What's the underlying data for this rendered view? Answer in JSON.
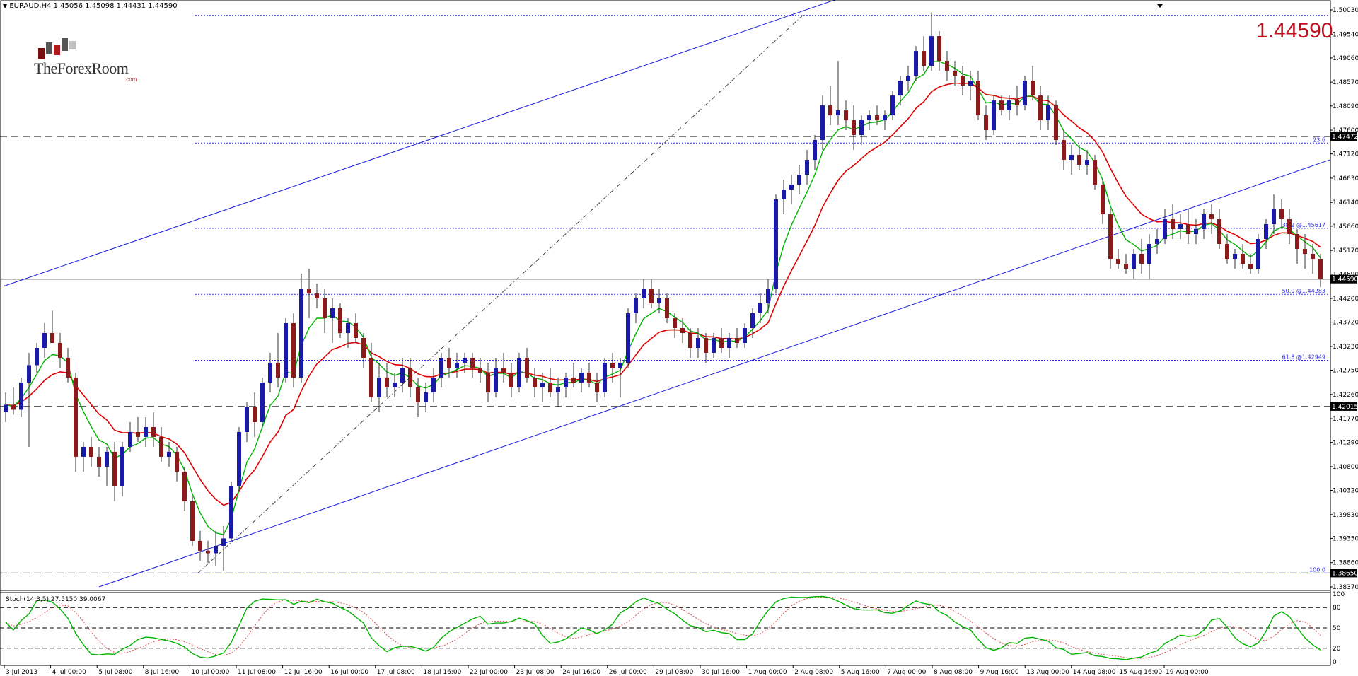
{
  "header": {
    "symbol_line": "EURAUD,H4  1.45056 1.45098 1.44431 1.44590"
  },
  "big_price": "1.44590",
  "logo": {
    "text_the": "The",
    "text_forex": "Forex",
    "text_room": "Room",
    "text_com": ".com"
  },
  "stoch": {
    "label": "Stoch(14,3,5) 27.5150 39.0067",
    "levels": [
      100,
      80,
      50,
      20,
      0
    ],
    "level_labels": [
      "100",
      "80",
      "50",
      "20",
      "0"
    ]
  },
  "colors": {
    "bull": "#1a1aa8",
    "bear": "#8b1a1a",
    "ma_fast": "#00b400",
    "ma_slow": "#e00000",
    "channel": "#1a1ae0",
    "fib": "#2a2ae0",
    "big_price": "#c01020"
  },
  "chart_data": {
    "type": "candlestick",
    "symbol": "EURAUD",
    "timeframe": "H4",
    "ylim": [
      1.3837,
      1.5003
    ],
    "y_ticks": [
      1.5003,
      1.4954,
      1.4906,
      1.4857,
      1.4809,
      1.476,
      1.4712,
      1.4663,
      1.4614,
      1.4566,
      1.4517,
      1.4469,
      1.442,
      1.4372,
      1.4323,
      1.4275,
      1.4226,
      1.4177,
      1.4129,
      1.408,
      1.4032,
      1.3983,
      1.3935,
      1.3886,
      1.3837
    ],
    "y_tick_labels": [
      "1.50030",
      "1.49540",
      "1.49060",
      "1.48570",
      "1.48090",
      "1.47600",
      "1.47120",
      "1.46630",
      "1.46140",
      "1.45660",
      "1.45170",
      "1.44690",
      "1.44200",
      "1.43720",
      "1.43230",
      "1.42750",
      "1.42260",
      "1.41770",
      "1.41290",
      "1.40800",
      "1.40320",
      "1.39830",
      "1.39350",
      "1.38860",
      "1.38370"
    ],
    "x_tick_labels": [
      "3 Jul 2013",
      "4 Jul 00:00",
      "5 Jul 08:00",
      "8 Jul 16:00",
      "10 Jul 00:00",
      "11 Jul 08:00",
      "12 Jul 16:00",
      "16 Jul 00:00",
      "17 Jul 08:00",
      "18 Jul 16:00",
      "22 Jul 00:00",
      "23 Jul 08:00",
      "24 Jul 16:00",
      "26 Jul 00:00",
      "29 Jul 08:00",
      "30 Jul 16:00",
      "1 Aug 00:00",
      "2 Aug 08:00",
      "5 Aug 16:00",
      "7 Aug 00:00",
      "8 Aug 08:00",
      "9 Aug 16:00",
      "13 Aug 00:00",
      "14 Aug 08:00",
      "15 Aug 16:00",
      "19 Aug 00:00"
    ],
    "horizontal_levels": [
      {
        "label": "1.47472",
        "value": 1.47472,
        "style": "dashed-black"
      },
      {
        "label": "1.44590",
        "value": 1.4459,
        "style": "solid-black"
      },
      {
        "label": "1.42015",
        "value": 1.42015,
        "style": "dashed-black"
      },
      {
        "label": "1.38650",
        "value": 1.3865,
        "style": "dashed-black"
      }
    ],
    "fib_levels": [
      {
        "label": "23.6",
        "value": 1.4734
      },
      {
        "label": "38.2 @1.45617",
        "value": 1.45617
      },
      {
        "label": "50.0 @1.44283",
        "value": 1.44283
      },
      {
        "label": "61.8 @1.42949",
        "value": 1.42949
      },
      {
        "label": "100.0",
        "value": 1.3865
      },
      {
        "label": "",
        "value": 1.4992
      }
    ],
    "candles": [
      [
        1.419,
        1.423,
        1.417,
        1.4205
      ],
      [
        1.4205,
        1.424,
        1.4185,
        1.4195
      ],
      [
        1.4195,
        1.426,
        1.418,
        1.425
      ],
      [
        1.425,
        1.431,
        1.412,
        1.4285
      ],
      [
        1.4285,
        1.433,
        1.427,
        1.432
      ],
      [
        1.432,
        1.437,
        1.43,
        1.435
      ],
      [
        1.435,
        1.4395,
        1.433,
        1.433
      ],
      [
        1.433,
        1.435,
        1.428,
        1.43
      ],
      [
        1.43,
        1.432,
        1.425,
        1.426
      ],
      [
        1.426,
        1.427,
        1.407,
        1.41
      ],
      [
        1.41,
        1.413,
        1.407,
        1.412
      ],
      [
        1.412,
        1.414,
        1.408,
        1.41
      ],
      [
        1.41,
        1.412,
        1.406,
        1.408
      ],
      [
        1.408,
        1.412,
        1.404,
        1.411
      ],
      [
        1.411,
        1.413,
        1.401,
        1.404
      ],
      [
        1.404,
        1.413,
        1.402,
        1.412
      ],
      [
        1.412,
        1.417,
        1.411,
        1.415
      ],
      [
        1.415,
        1.418,
        1.413,
        1.414
      ],
      [
        1.414,
        1.418,
        1.412,
        1.416
      ],
      [
        1.416,
        1.419,
        1.412,
        1.414
      ],
      [
        1.414,
        1.416,
        1.409,
        1.41
      ],
      [
        1.41,
        1.413,
        1.408,
        1.411
      ],
      [
        1.411,
        1.412,
        1.405,
        1.407
      ],
      [
        1.407,
        1.408,
        1.399,
        1.401
      ],
      [
        1.401,
        1.402,
        1.392,
        1.393
      ],
      [
        1.393,
        1.395,
        1.389,
        1.391
      ],
      [
        1.391,
        1.393,
        1.3885,
        1.3905
      ],
      [
        1.3905,
        1.395,
        1.388,
        1.392
      ],
      [
        1.392,
        1.396,
        1.387,
        1.3935
      ],
      [
        1.3935,
        1.405,
        1.393,
        1.404
      ],
      [
        1.404,
        1.416,
        1.403,
        1.415
      ],
      [
        1.415,
        1.421,
        1.413,
        1.42
      ],
      [
        1.42,
        1.423,
        1.414,
        1.417
      ],
      [
        1.417,
        1.426,
        1.416,
        1.425
      ],
      [
        1.425,
        1.431,
        1.423,
        1.429
      ],
      [
        1.429,
        1.435,
        1.424,
        1.426
      ],
      [
        1.426,
        1.438,
        1.425,
        1.437
      ],
      [
        1.437,
        1.439,
        1.424,
        1.426
      ],
      [
        1.426,
        1.447,
        1.425,
        1.444
      ],
      [
        1.444,
        1.448,
        1.438,
        1.443
      ],
      [
        1.443,
        1.445,
        1.44,
        1.442
      ],
      [
        1.442,
        1.444,
        1.435,
        1.438
      ],
      [
        1.438,
        1.442,
        1.433,
        1.44
      ],
      [
        1.44,
        1.441,
        1.434,
        1.435
      ],
      [
        1.435,
        1.438,
        1.432,
        1.437
      ],
      [
        1.437,
        1.439,
        1.433,
        1.434
      ],
      [
        1.434,
        1.435,
        1.428,
        1.43
      ],
      [
        1.43,
        1.433,
        1.421,
        1.422
      ],
      [
        1.422,
        1.429,
        1.419,
        1.426
      ],
      [
        1.426,
        1.429,
        1.422,
        1.424
      ],
      [
        1.424,
        1.427,
        1.422,
        1.425
      ],
      [
        1.425,
        1.43,
        1.423,
        1.428
      ],
      [
        1.428,
        1.43,
        1.422,
        1.424
      ],
      [
        1.424,
        1.426,
        1.418,
        1.421
      ],
      [
        1.421,
        1.425,
        1.419,
        1.423
      ],
      [
        1.423,
        1.428,
        1.421,
        1.426
      ],
      [
        1.426,
        1.431,
        1.424,
        1.43
      ],
      [
        1.43,
        1.432,
        1.426,
        1.428
      ],
      [
        1.428,
        1.431,
        1.426,
        1.429
      ],
      [
        1.429,
        1.431,
        1.427,
        1.43
      ],
      [
        1.43,
        1.431,
        1.426,
        1.428
      ],
      [
        1.428,
        1.43,
        1.425,
        1.427
      ],
      [
        1.427,
        1.429,
        1.421,
        1.423
      ],
      [
        1.423,
        1.43,
        1.422,
        1.428
      ],
      [
        1.428,
        1.431,
        1.425,
        1.427
      ],
      [
        1.427,
        1.429,
        1.422,
        1.424
      ],
      [
        1.424,
        1.431,
        1.423,
        1.43
      ],
      [
        1.43,
        1.432,
        1.425,
        1.426
      ],
      [
        1.426,
        1.428,
        1.422,
        1.424
      ],
      [
        1.424,
        1.427,
        1.421,
        1.425
      ],
      [
        1.425,
        1.428,
        1.422,
        1.423
      ],
      [
        1.423,
        1.426,
        1.42,
        1.424
      ],
      [
        1.424,
        1.427,
        1.422,
        1.426
      ],
      [
        1.426,
        1.429,
        1.424,
        1.425
      ],
      [
        1.425,
        1.428,
        1.423,
        1.427
      ],
      [
        1.427,
        1.429,
        1.424,
        1.425
      ],
      [
        1.425,
        1.427,
        1.421,
        1.423
      ],
      [
        1.423,
        1.43,
        1.422,
        1.429
      ],
      [
        1.429,
        1.431,
        1.425,
        1.428
      ],
      [
        1.428,
        1.43,
        1.422,
        1.429
      ],
      [
        1.429,
        1.44,
        1.428,
        1.439
      ],
      [
        1.439,
        1.443,
        1.437,
        1.442
      ],
      [
        1.442,
        1.446,
        1.44,
        1.444
      ],
      [
        1.444,
        1.446,
        1.44,
        1.441
      ],
      [
        1.441,
        1.444,
        1.439,
        1.442
      ],
      [
        1.442,
        1.443,
        1.437,
        1.438
      ],
      [
        1.438,
        1.439,
        1.434,
        1.436
      ],
      [
        1.436,
        1.438,
        1.433,
        1.435
      ],
      [
        1.435,
        1.436,
        1.43,
        1.432
      ],
      [
        1.432,
        1.436,
        1.43,
        1.434
      ],
      [
        1.434,
        1.435,
        1.429,
        1.431
      ],
      [
        1.431,
        1.435,
        1.43,
        1.434
      ],
      [
        1.434,
        1.436,
        1.431,
        1.432
      ],
      [
        1.432,
        1.435,
        1.43,
        1.434
      ],
      [
        1.434,
        1.436,
        1.432,
        1.433
      ],
      [
        1.433,
        1.437,
        1.432,
        1.436
      ],
      [
        1.436,
        1.44,
        1.434,
        1.439
      ],
      [
        1.439,
        1.443,
        1.437,
        1.441
      ],
      [
        1.441,
        1.446,
        1.439,
        1.444
      ],
      [
        1.444,
        1.463,
        1.443,
        1.462
      ],
      [
        1.462,
        1.466,
        1.459,
        1.464
      ],
      [
        1.464,
        1.467,
        1.461,
        1.465
      ],
      [
        1.465,
        1.469,
        1.463,
        1.467
      ],
      [
        1.467,
        1.472,
        1.465,
        1.47
      ],
      [
        1.47,
        1.475,
        1.468,
        1.474
      ],
      [
        1.474,
        1.483,
        1.472,
        1.481
      ],
      [
        1.481,
        1.485,
        1.477,
        1.479
      ],
      [
        1.479,
        1.49,
        1.477,
        1.48
      ],
      [
        1.48,
        1.482,
        1.476,
        1.478
      ],
      [
        1.478,
        1.481,
        1.472,
        1.475
      ],
      [
        1.475,
        1.479,
        1.473,
        1.478
      ],
      [
        1.478,
        1.48,
        1.476,
        1.479
      ],
      [
        1.479,
        1.481,
        1.477,
        1.478
      ],
      [
        1.478,
        1.48,
        1.476,
        1.479
      ],
      [
        1.479,
        1.484,
        1.478,
        1.483
      ],
      [
        1.483,
        1.487,
        1.481,
        1.486
      ],
      [
        1.486,
        1.489,
        1.484,
        1.487
      ],
      [
        1.487,
        1.493,
        1.486,
        1.492
      ],
      [
        1.492,
        1.495,
        1.488,
        1.489
      ],
      [
        1.489,
        1.4998,
        1.488,
        1.495
      ],
      [
        1.495,
        1.496,
        1.488,
        1.49
      ],
      [
        1.49,
        1.492,
        1.486,
        1.488
      ],
      [
        1.488,
        1.49,
        1.485,
        1.487
      ],
      [
        1.487,
        1.489,
        1.483,
        1.485
      ],
      [
        1.485,
        1.488,
        1.482,
        1.486
      ],
      [
        1.486,
        1.488,
        1.478,
        1.479
      ],
      [
        1.479,
        1.481,
        1.474,
        1.476
      ],
      [
        1.476,
        1.483,
        1.475,
        1.482
      ],
      [
        1.482,
        1.483,
        1.479,
        1.48
      ],
      [
        1.48,
        1.483,
        1.478,
        1.482
      ],
      [
        1.482,
        1.485,
        1.479,
        1.481
      ],
      [
        1.481,
        1.487,
        1.48,
        1.486
      ],
      [
        1.486,
        1.489,
        1.482,
        1.483
      ],
      [
        1.483,
        1.485,
        1.476,
        1.478
      ],
      [
        1.478,
        1.483,
        1.476,
        1.481
      ],
      [
        1.481,
        1.482,
        1.473,
        1.474
      ],
      [
        1.474,
        1.476,
        1.468,
        1.47
      ],
      [
        1.47,
        1.473,
        1.467,
        1.471
      ],
      [
        1.471,
        1.473,
        1.468,
        1.469
      ],
      [
        1.469,
        1.472,
        1.467,
        1.47
      ],
      [
        1.47,
        1.471,
        1.464,
        1.465
      ],
      [
        1.465,
        1.466,
        1.457,
        1.459
      ],
      [
        1.459,
        1.46,
        1.448,
        1.45
      ],
      [
        1.45,
        1.452,
        1.448,
        1.449
      ],
      [
        1.449,
        1.451,
        1.447,
        1.448
      ],
      [
        1.448,
        1.452,
        1.446,
        1.451
      ],
      [
        1.451,
        1.454,
        1.447,
        1.449
      ],
      [
        1.449,
        1.455,
        1.446,
        1.453
      ],
      [
        1.453,
        1.456,
        1.451,
        1.454
      ],
      [
        1.454,
        1.46,
        1.453,
        1.458
      ],
      [
        1.458,
        1.461,
        1.454,
        1.456
      ],
      [
        1.456,
        1.459,
        1.454,
        1.457
      ],
      [
        1.457,
        1.46,
        1.453,
        1.455
      ],
      [
        1.455,
        1.458,
        1.453,
        1.456
      ],
      [
        1.456,
        1.46,
        1.454,
        1.459
      ],
      [
        1.459,
        1.461,
        1.455,
        1.458
      ],
      [
        1.458,
        1.46,
        1.452,
        1.453
      ],
      [
        1.453,
        1.455,
        1.449,
        1.45
      ],
      [
        1.45,
        1.452,
        1.448,
        1.451
      ],
      [
        1.451,
        1.453,
        1.448,
        1.449
      ],
      [
        1.449,
        1.451,
        1.447,
        1.448
      ],
      [
        1.448,
        1.455,
        1.447,
        1.454
      ],
      [
        1.454,
        1.458,
        1.452,
        1.457
      ],
      [
        1.457,
        1.463,
        1.455,
        1.46
      ],
      [
        1.46,
        1.462,
        1.456,
        1.458
      ],
      [
        1.458,
        1.46,
        1.453,
        1.455
      ],
      [
        1.455,
        1.456,
        1.449,
        1.452
      ],
      [
        1.452,
        1.455,
        1.448,
        1.451
      ],
      [
        1.451,
        1.453,
        1.447,
        1.45
      ],
      [
        1.45,
        1.451,
        1.4443,
        1.4459
      ]
    ],
    "ma_fast": "EMA/SMA fast (green)",
    "ma_slow": "EMA/SMA slow (red)",
    "stochastic": {
      "k": 27.515,
      "d": 39.0067
    }
  }
}
